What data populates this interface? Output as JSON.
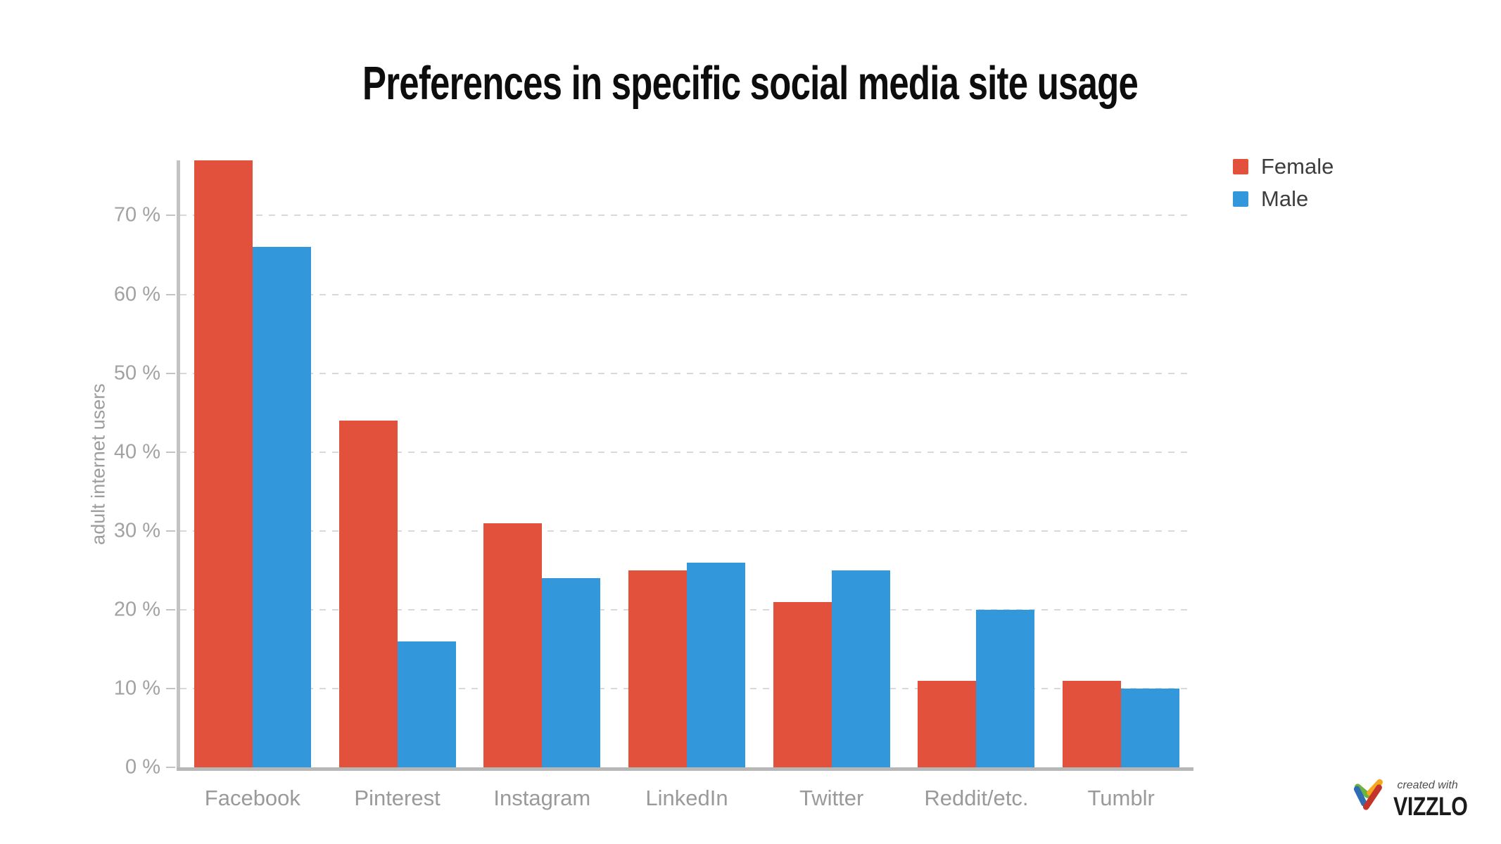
{
  "title": "Preferences in specific social media site usage",
  "chart_data": {
    "type": "bar",
    "title": "Preferences in specific social media site usage",
    "categories": [
      "Facebook",
      "Pinterest",
      "Instagram",
      "LinkedIn",
      "Twitter",
      "Reddit/etc.",
      "Tumblr"
    ],
    "series": [
      {
        "name": "Female",
        "color": "#e2513c",
        "values": [
          77,
          44,
          31,
          25,
          21,
          11,
          11
        ]
      },
      {
        "name": "Male",
        "color": "#3397db",
        "values": [
          66,
          16,
          24,
          26,
          25,
          20,
          10
        ]
      }
    ],
    "xlabel": "",
    "ylabel": "adult internet users",
    "ylim": [
      0,
      77
    ],
    "yticks": [
      0,
      10,
      20,
      30,
      40,
      50,
      60,
      70
    ],
    "ytick_suffix": " %",
    "grid": "horizontal-dashed",
    "legend_position": "top-right"
  },
  "footer": {
    "created_with": "created with",
    "brand": "VIZZLO"
  }
}
